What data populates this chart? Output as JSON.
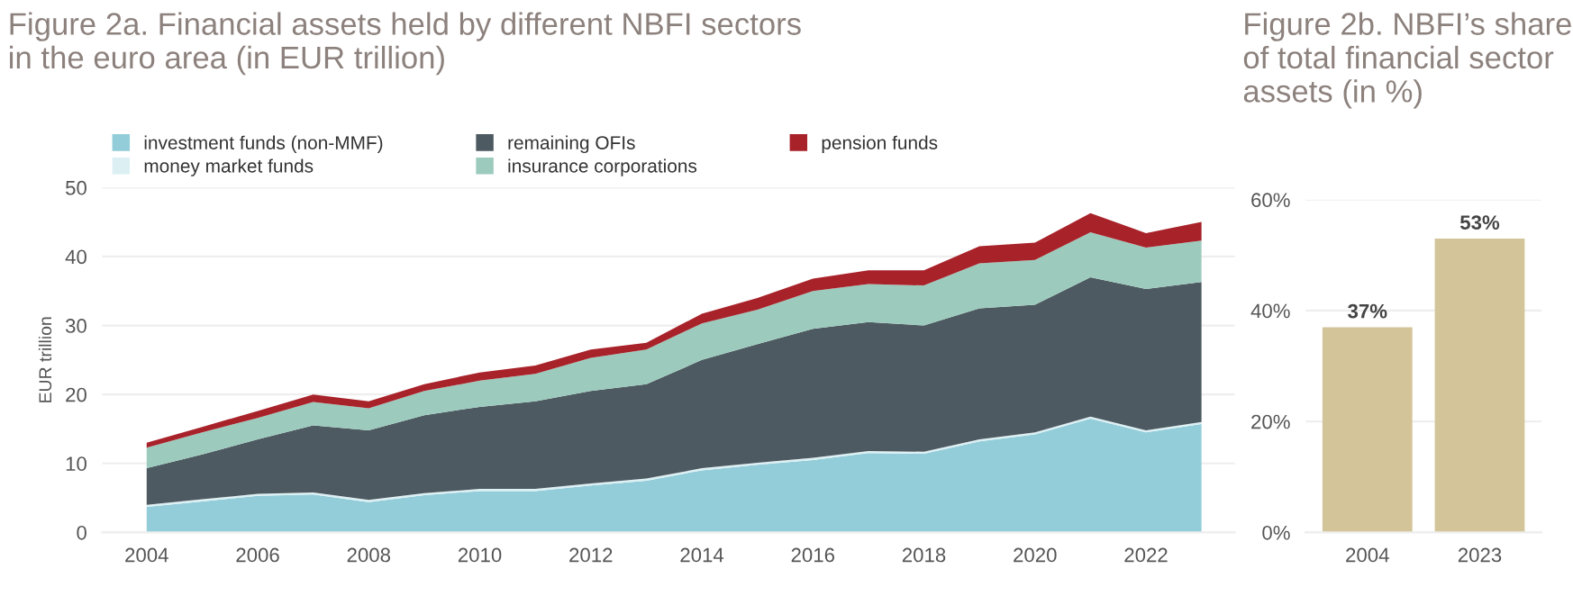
{
  "chart_data": [
    {
      "type": "area",
      "stacked": true,
      "title": "Figure 2a. Financial assets held by different NBFI sectors\nin the euro area (in EUR trillion)",
      "ylabel": "EUR trillion",
      "x": [
        2004,
        2005,
        2006,
        2007,
        2008,
        2009,
        2010,
        2011,
        2012,
        2013,
        2014,
        2015,
        2016,
        2017,
        2018,
        2019,
        2020,
        2021,
        2022,
        2023
      ],
      "series": [
        {
          "name": "investment funds (non-MMF)",
          "color": "#93cdd9",
          "values": [
            3.7,
            4.5,
            5.3,
            5.5,
            4.4,
            5.4,
            6.0,
            6.0,
            6.8,
            7.5,
            9.0,
            9.8,
            10.5,
            11.5,
            11.4,
            13.2,
            14.2,
            16.5,
            14.5,
            15.7
          ]
        },
        {
          "name": "money market funds",
          "color": "#dcf0f4",
          "values": [
            0.3,
            0.3,
            0.3,
            0.3,
            0.3,
            0.3,
            0.3,
            0.3,
            0.3,
            0.3,
            0.3,
            0.3,
            0.3,
            0.3,
            0.3,
            0.3,
            0.3,
            0.3,
            0.3,
            0.3
          ]
        },
        {
          "name": "remaining OFIs",
          "color": "#4d5a61",
          "values": [
            5.3,
            6.5,
            7.9,
            9.7,
            10.1,
            11.3,
            11.9,
            12.7,
            13.4,
            13.7,
            15.7,
            17.2,
            18.7,
            18.7,
            18.3,
            19.0,
            18.5,
            20.2,
            20.5,
            20.3
          ]
        },
        {
          "name": "insurance corporations",
          "color": "#9ccbbd",
          "values": [
            3.0,
            3.2,
            3.1,
            3.4,
            3.2,
            3.5,
            3.8,
            4.0,
            4.8,
            5.0,
            5.3,
            5.0,
            5.5,
            5.5,
            5.8,
            6.5,
            6.5,
            6.5,
            6.0,
            6.0
          ]
        },
        {
          "name": "pension funds",
          "color": "#a8222a",
          "values": [
            0.7,
            0.8,
            1.0,
            1.1,
            1.0,
            1.0,
            1.2,
            1.2,
            1.2,
            1.0,
            1.4,
            1.7,
            1.8,
            2.0,
            2.2,
            2.5,
            2.5,
            2.8,
            2.1,
            2.7
          ]
        }
      ],
      "xlim": [
        2003.2,
        2023.6
      ],
      "xticks": [
        2004,
        2006,
        2008,
        2010,
        2012,
        2014,
        2016,
        2018,
        2020,
        2022
      ],
      "ylim": [
        0,
        50
      ],
      "yticks": [
        0,
        10,
        20,
        30,
        40,
        50
      ],
      "grid": "y",
      "legend": "top"
    },
    {
      "type": "bar",
      "title": "Figure 2b. NBFI’s share\nof total financial sector\nassets (in %)",
      "categories": [
        "2004",
        "2023"
      ],
      "values": [
        37,
        53
      ],
      "color": "#d4c49a",
      "value_labels": [
        "37%",
        "53%"
      ],
      "ylim": [
        0,
        60
      ],
      "yticks": [
        {
          "value": 0,
          "label": "0%"
        },
        {
          "value": 20,
          "label": "20%"
        },
        {
          "value": 40,
          "label": "40%"
        },
        {
          "value": 60,
          "label": "60%"
        }
      ],
      "grid": "y"
    }
  ]
}
